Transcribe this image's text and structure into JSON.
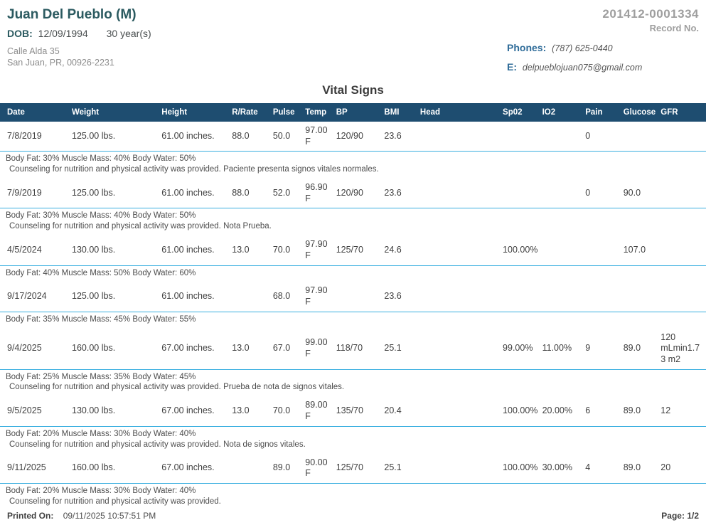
{
  "header": {
    "patient_name": "Juan Del Pueblo (M)",
    "dob_label": "DOB:",
    "dob_value": "12/09/1994",
    "age": "30 year(s)",
    "address_line1": "Calle Alda 35",
    "address_line2": "San Juan, PR, 00926-2231",
    "record_number": "201412-0001334",
    "record_label": "Record No.",
    "phones_label": "Phones:",
    "phones_value": "(787) 625-0440",
    "email_label": "E:",
    "email_value": "delpueblojuan075@gmail.com"
  },
  "title": "Vital Signs",
  "table": {
    "columns": [
      "Date",
      "Weight",
      "Height",
      "R/Rate",
      "Pulse",
      "Temp",
      "BP",
      "BMI",
      "Head",
      "Sp02",
      "IO2",
      "Pain",
      "Glucose",
      "GFR"
    ],
    "rows": [
      {
        "cells": [
          "7/8/2019",
          "125.00 lbs.",
          "61.00 inches.",
          "88.0",
          "50.0",
          "97.00 F",
          "120/90",
          "23.6",
          "",
          "",
          "",
          "0",
          "",
          ""
        ],
        "notes": [
          "Body Fat: 30% Muscle Mass: 40% Body Water: 50%",
          "Counseling for nutrition and physical activity was provided. Paciente presenta signos vitales normales."
        ]
      },
      {
        "cells": [
          "7/9/2019",
          "125.00 lbs.",
          "61.00 inches.",
          "88.0",
          "52.0",
          "96.90 F",
          "120/90",
          "23.6",
          "",
          "",
          "",
          "0",
          "90.0",
          ""
        ],
        "notes": [
          "Body Fat: 30% Muscle Mass: 40% Body Water: 50%",
          "Counseling for nutrition and physical activity was provided. Nota Prueba."
        ]
      },
      {
        "cells": [
          "4/5/2024",
          "130.00 lbs.",
          "61.00 inches.",
          "13.0",
          "70.0",
          "97.90 F",
          "125/70",
          "24.6",
          "",
          "100.00%",
          "",
          "",
          "107.0",
          ""
        ],
        "notes": [
          "Body Fat: 40% Muscle Mass: 50% Body Water: 60%"
        ]
      },
      {
        "cells": [
          "9/17/2024",
          "125.00 lbs.",
          "61.00 inches.",
          "",
          "68.0",
          "97.90 F",
          "",
          "23.6",
          "",
          "",
          "",
          "",
          "",
          ""
        ],
        "notes": [
          "Body Fat: 35% Muscle Mass: 45% Body Water: 55%"
        ]
      },
      {
        "cells": [
          "9/4/2025",
          "160.00 lbs.",
          "67.00 inches.",
          "13.0",
          "67.0",
          "99.00 F",
          "118/70",
          "25.1",
          "",
          "99.00%",
          "11.00%",
          "9",
          "89.0",
          "120 mLmin1.73 m2"
        ],
        "notes": [
          "Body Fat: 25% Muscle Mass: 35% Body Water: 45%",
          "Counseling for nutrition and physical activity was provided. Prueba de nota de signos vitales."
        ]
      },
      {
        "cells": [
          "9/5/2025",
          "130.00 lbs.",
          "67.00 inches.",
          "13.0",
          "70.0",
          "89.00 F",
          "135/70",
          "20.4",
          "",
          "100.00%",
          "20.00%",
          "6",
          "89.0",
          "12"
        ],
        "notes": [
          "Body Fat: 20% Muscle Mass: 30% Body Water: 40%",
          "Counseling for nutrition and physical activity was provided. Nota de signos vitales."
        ]
      },
      {
        "cells": [
          "9/11/2025",
          "160.00 lbs.",
          "67.00 inches.",
          "",
          "89.0",
          "90.00 F",
          "125/70",
          "25.1",
          "",
          "100.00%",
          "30.00%",
          "4",
          "89.0",
          "20"
        ],
        "notes": [
          "Body Fat: 20% Muscle Mass: 30% Body Water: 40%",
          "Counseling for nutrition and physical activity was provided."
        ]
      }
    ]
  },
  "footer": {
    "printed_label": "Printed On:",
    "printed_value": "09/11/2025 10:57:51 PM",
    "page_label": "Page:",
    "page_value": "1/2"
  },
  "colors": {
    "teal_dark": "#2B5A60",
    "steel_blue": "#2F6C99",
    "title_rule_blue": "#2E75B6",
    "table_header_bg": "#1E4D70",
    "row_divider_blue": "#3AAFE0",
    "text_dark": "#404040",
    "text_gray": "#8C8C8C",
    "record_gray": "#9E9E9E"
  }
}
